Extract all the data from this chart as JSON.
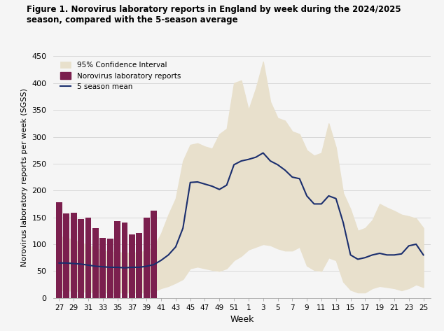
{
  "title_line1": "Figure 1. Norovirus laboratory reports in England by week during the 2024/2025",
  "title_line2": "season, compared with the 5-season average",
  "xlabel": "Week",
  "ylabel": "Norovirus laboratory reports per week (SGSS)",
  "ylim": [
    0,
    450
  ],
  "yticks": [
    0,
    50,
    100,
    150,
    200,
    250,
    300,
    350,
    400,
    450
  ],
  "background_color": "#f5f5f5",
  "bar_color": "#7B1F4E",
  "line_color": "#1a2e6e",
  "ci_color": "#e8e0cc",
  "bar_weeks": [
    27,
    28,
    29,
    30,
    31,
    32,
    33,
    34,
    35,
    36,
    37,
    38,
    39,
    40
  ],
  "bar_values": [
    178,
    157,
    158,
    147,
    150,
    130,
    112,
    110,
    143,
    141,
    118,
    121,
    150,
    163
  ],
  "xtick_labels": [
    "27",
    "29",
    "31",
    "33",
    "35",
    "37",
    "39",
    "41",
    "43",
    "45",
    "47",
    "49",
    "51",
    "1",
    "3",
    "5",
    "7",
    "9",
    "11",
    "13",
    "15",
    "17",
    "19",
    "21",
    "23",
    "25"
  ],
  "mean_x_weeks": [
    27,
    28,
    29,
    30,
    31,
    32,
    33,
    34,
    35,
    36,
    37,
    38,
    39,
    40,
    41,
    42,
    43,
    44,
    45,
    46,
    47,
    48,
    49,
    50,
    51,
    52,
    1,
    2,
    3,
    4,
    5,
    6,
    7,
    8,
    9,
    10,
    11,
    12,
    13,
    14,
    15,
    16,
    17,
    18,
    19,
    20,
    21,
    22,
    23,
    24,
    25
  ],
  "mean_values": [
    65,
    65,
    64,
    63,
    61,
    59,
    58,
    57,
    57,
    56,
    57,
    57,
    59,
    62,
    70,
    80,
    95,
    130,
    215,
    216,
    212,
    208,
    202,
    210,
    248,
    255,
    258,
    262,
    270,
    255,
    248,
    238,
    225,
    222,
    190,
    175,
    175,
    190,
    185,
    140,
    80,
    72,
    75,
    80,
    83,
    80,
    80,
    82,
    97,
    100,
    80
  ],
  "ci_upper": [
    115,
    112,
    108,
    103,
    98,
    93,
    88,
    86,
    85,
    84,
    84,
    85,
    88,
    95,
    120,
    155,
    185,
    255,
    285,
    288,
    282,
    278,
    305,
    315,
    400,
    405,
    350,
    390,
    440,
    365,
    335,
    330,
    310,
    305,
    275,
    265,
    270,
    325,
    280,
    195,
    165,
    125,
    130,
    145,
    175,
    168,
    162,
    155,
    152,
    148,
    130
  ],
  "ci_lower": [
    15,
    14,
    13,
    12,
    11,
    10,
    10,
    10,
    10,
    10,
    10,
    10,
    10,
    12,
    18,
    22,
    28,
    35,
    55,
    58,
    55,
    52,
    50,
    55,
    70,
    78,
    90,
    95,
    100,
    98,
    92,
    88,
    88,
    95,
    60,
    52,
    50,
    75,
    70,
    30,
    15,
    10,
    10,
    18,
    22,
    20,
    18,
    14,
    18,
    25,
    20
  ]
}
